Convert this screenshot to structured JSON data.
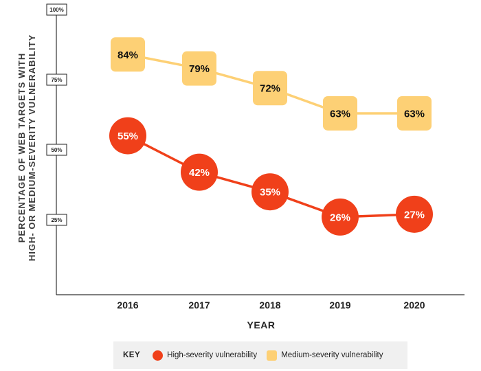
{
  "chart_data": {
    "type": "line",
    "categories": [
      "2016",
      "2017",
      "2018",
      "2019",
      "2020"
    ],
    "series": [
      {
        "name": "High-severity vulnerability",
        "color": "#f0401a",
        "values": [
          55,
          42,
          35,
          26,
          27
        ],
        "labels": [
          "55%",
          "42%",
          "35%",
          "26%",
          "27%"
        ]
      },
      {
        "name": "Medium-severity vulnerability",
        "color": "#fdd075",
        "values": [
          84,
          79,
          72,
          63,
          63
        ],
        "labels": [
          "84%",
          "79%",
          "72%",
          "63%",
          "63%"
        ]
      }
    ],
    "y_ticks": [
      "100%",
      "75%",
      "50%",
      "25%"
    ],
    "ylim": [
      0,
      100
    ],
    "ylabel_lines": [
      "PERCENTAGE OF WEB TARGETS WITH",
      "HIGH- OR MEDIUM-SEVERITY VULNERABILITY"
    ],
    "xlabel": "YEAR",
    "legend": {
      "key_label": "KEY",
      "high": "High-severity vulnerability",
      "medium": "Medium-severity vulnerability"
    }
  }
}
